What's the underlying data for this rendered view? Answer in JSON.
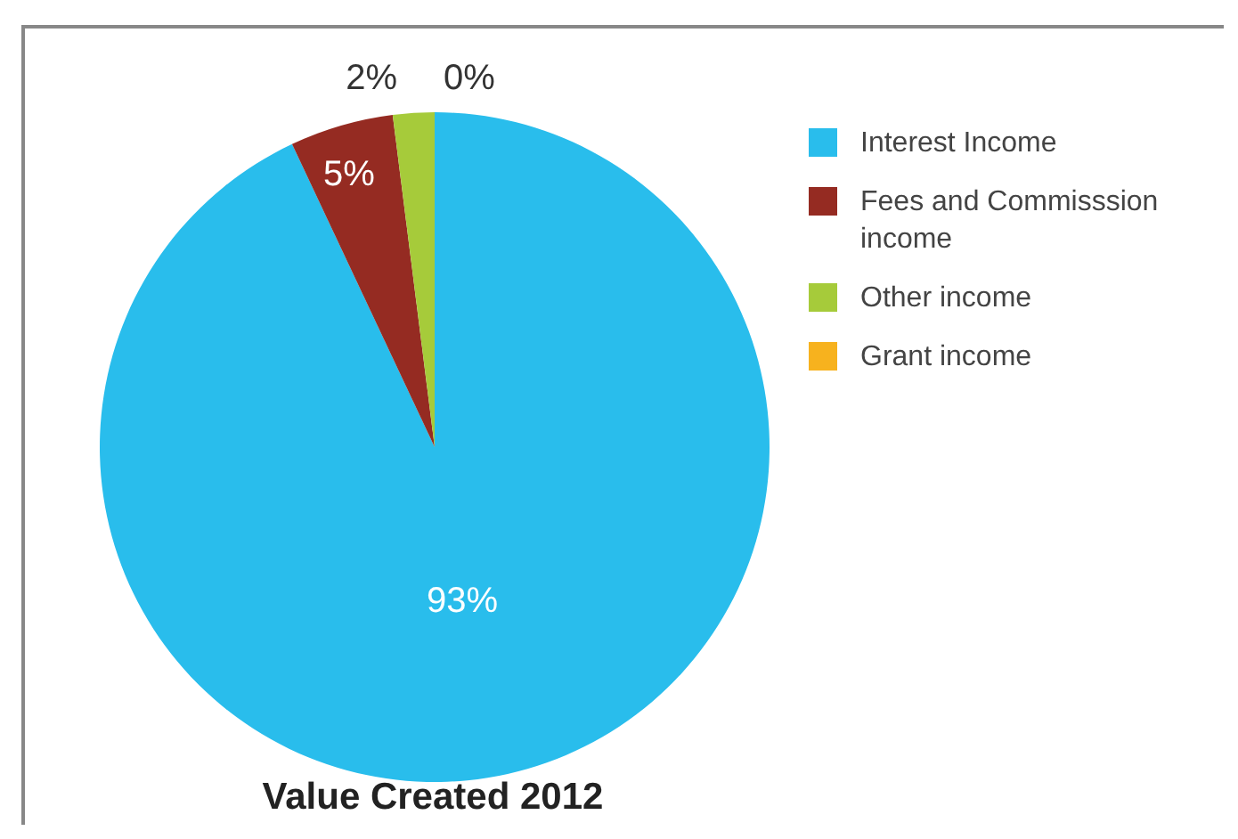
{
  "chart_data": {
    "type": "pie",
    "title": "Value Created 2012",
    "categories": [
      "Interest Income",
      "Fees and Commisssion income",
      "Other income",
      "Grant income"
    ],
    "values": [
      93,
      5,
      2,
      0
    ],
    "colors": [
      "#29bdec",
      "#952b22",
      "#a6cb3a",
      "#f7b21e"
    ],
    "value_labels": [
      "93%",
      "5%",
      "2%",
      "0%"
    ],
    "legend": "top right"
  }
}
